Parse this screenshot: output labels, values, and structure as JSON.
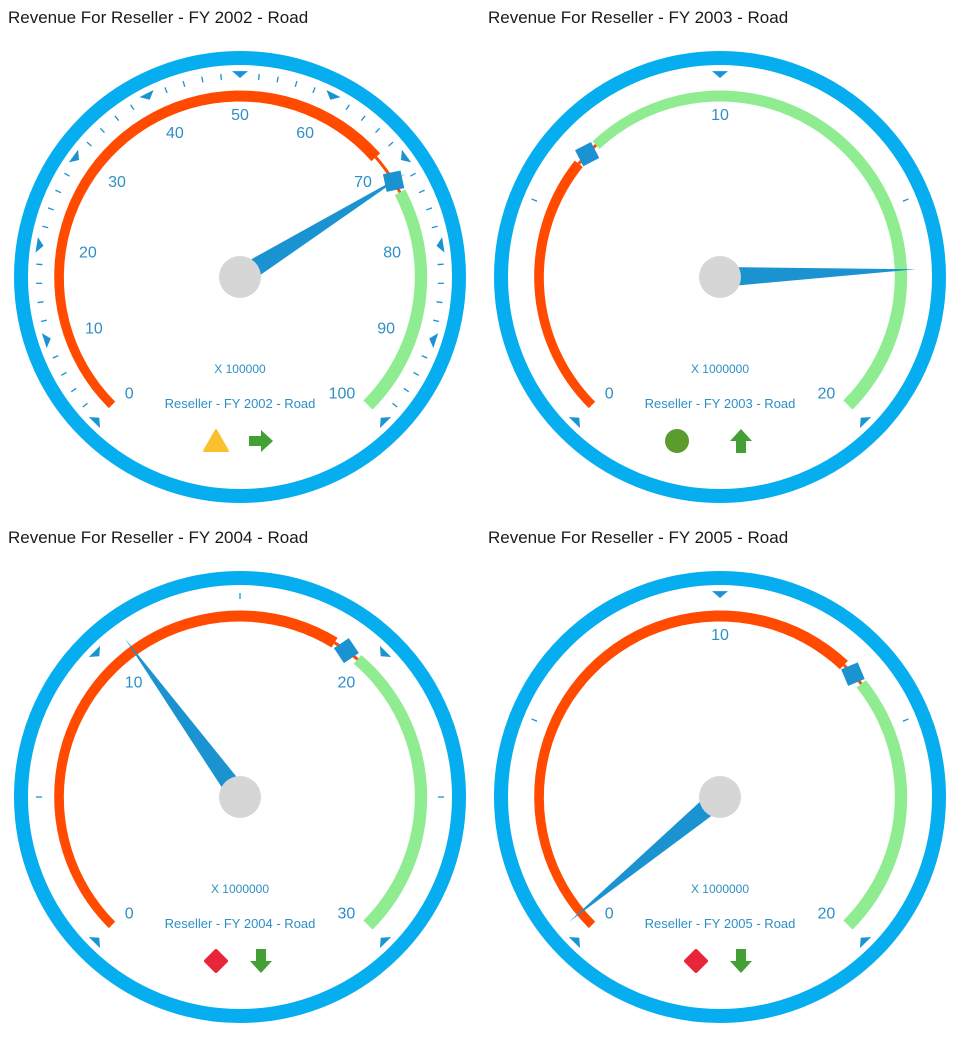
{
  "colors": {
    "frame": "#06ADEF",
    "bad_range": "#FF4A00",
    "good_range": "#90EC90",
    "needle": "#1B93D1",
    "hub": "#D6D6D6",
    "label": "#2E8FC6",
    "warning": "#FBC02D",
    "ok_green": "#5C9B2E",
    "arrow_green": "#43A035",
    "alert_red": "#E8263A"
  },
  "chart_data": [
    {
      "type": "gauge",
      "title": "Revenue For Reseller - FY 2002 - Road",
      "gauge_label": "Reseller - FY 2002 - Road",
      "multiplier": "X 100000",
      "min": 0,
      "max": 100,
      "tick_labels": [
        "0",
        "10",
        "20",
        "30",
        "40",
        "50",
        "60",
        "70",
        "80",
        "90",
        "100"
      ],
      "value": 71.5,
      "target": 71.5,
      "bad_range": [
        0,
        68
      ],
      "good_range": [
        73,
        100
      ],
      "status_icon": "warning-triangle-icon",
      "trend_icon": "arrow-right-icon"
    },
    {
      "type": "gauge",
      "title": "Revenue For Reseller - FY 2003 - Road",
      "gauge_label": "Reseller - FY 2003 - Road",
      "multiplier": "X 1000000",
      "min": 0,
      "max": 20,
      "tick_labels": [
        "0",
        "10",
        "20"
      ],
      "value": 16.5,
      "target": 6.5,
      "bad_range": [
        0,
        6.2
      ],
      "good_range": [
        6.8,
        20
      ],
      "status_icon": "green-circle-icon",
      "trend_icon": "arrow-up-icon"
    },
    {
      "type": "gauge",
      "title": "Revenue For Reseller - FY 2004 - Road",
      "gauge_label": "Reseller - FY 2004 - Road",
      "multiplier": "X 1000000",
      "min": 0,
      "max": 30,
      "tick_labels": [
        "0",
        "10",
        "20",
        "30"
      ],
      "value": 11,
      "target": 19,
      "bad_range": [
        0,
        18.5
      ],
      "good_range": [
        19.5,
        30
      ],
      "status_icon": "red-diamond-icon",
      "trend_icon": "arrow-down-icon"
    },
    {
      "type": "gauge",
      "title": "Revenue For Reseller - FY 2005 - Road",
      "gauge_label": "Reseller - FY 2005 - Road",
      "multiplier": "X 1000000",
      "min": 0,
      "max": 20,
      "tick_labels": [
        "0",
        "10",
        "20"
      ],
      "value": 0.4,
      "target": 13.5,
      "bad_range": [
        0,
        13.2
      ],
      "good_range": [
        13.8,
        20
      ],
      "status_icon": "red-diamond-icon",
      "trend_icon": "arrow-down-icon"
    }
  ]
}
